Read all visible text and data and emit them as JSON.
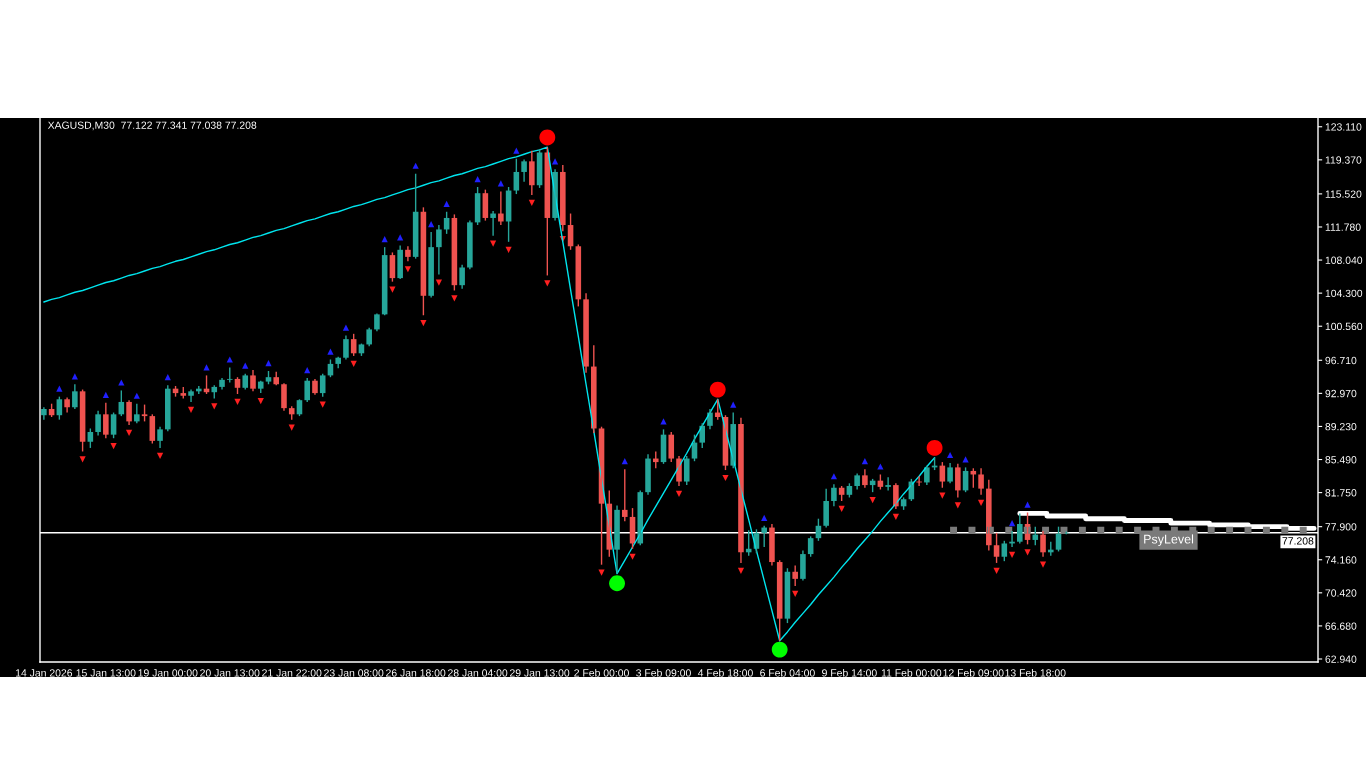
{
  "chart_data": {
    "type": "candlestick",
    "title": "XAGUSD,M30  77.122 77.341 77.038 77.208",
    "categories": [
      "14 Jan 2026",
      null,
      null,
      null,
      null,
      null,
      null,
      null,
      "15 Jan 13:00",
      null,
      null,
      null,
      null,
      null,
      null,
      null,
      "19 Jan 00:00",
      null,
      null,
      null,
      null,
      null,
      null,
      null,
      "20 Jan 13:00",
      null,
      null,
      null,
      null,
      null,
      null,
      null,
      "21 Jan 22:00",
      null,
      null,
      null,
      null,
      null,
      null,
      null,
      "23 Jan 08:00",
      null,
      null,
      null,
      null,
      null,
      null,
      null,
      "26 Jan 18:00",
      null,
      null,
      null,
      null,
      null,
      null,
      null,
      "28 Jan 04:00",
      null,
      null,
      null,
      null,
      null,
      null,
      null,
      "29 Jan 13:00",
      null,
      null,
      null,
      null,
      null,
      null,
      null,
      "2 Feb 00:00",
      null,
      null,
      null,
      null,
      null,
      null,
      null,
      "3 Feb 09:00",
      null,
      null,
      null,
      null,
      null,
      null,
      null,
      "4 Feb 18:00",
      null,
      null,
      null,
      null,
      null,
      null,
      null,
      "6 Feb 04:00",
      null,
      null,
      null,
      null,
      null,
      null,
      null,
      "9 Feb 14:00",
      null,
      null,
      null,
      null,
      null,
      null,
      null,
      "11 Feb 00:00",
      null,
      null,
      null,
      null,
      null,
      null,
      null,
      "12 Feb 09:00",
      null,
      null,
      null,
      null,
      null,
      null,
      null,
      "13 Feb 18:00",
      null,
      null,
      null,
      null,
      null,
      null,
      null,
      null,
      null,
      null,
      null,
      null,
      null,
      null,
      null,
      null,
      null,
      null,
      null,
      null,
      null,
      null,
      null,
      null,
      null,
      null,
      null,
      null,
      null,
      null,
      null,
      null,
      null,
      null,
      null,
      null
    ],
    "ohlc": [
      [
        90.5,
        91.4,
        90.0,
        91.2
      ],
      [
        91.2,
        91.8,
        90.3,
        90.5
      ],
      [
        90.5,
        92.6,
        90.0,
        92.3
      ],
      [
        92.3,
        92.5,
        90.8,
        91.4
      ],
      [
        91.4,
        94.0,
        91.2,
        93.2
      ],
      [
        93.2,
        93.4,
        86.4,
        87.5
      ],
      [
        87.5,
        89.0,
        86.8,
        88.6
      ],
      [
        88.6,
        91.0,
        88.2,
        90.6
      ],
      [
        90.6,
        91.9,
        87.9,
        88.3
      ],
      [
        88.3,
        90.8,
        87.9,
        90.6
      ],
      [
        90.6,
        93.3,
        90.4,
        92.0
      ],
      [
        92.0,
        92.2,
        89.4,
        89.8
      ],
      [
        89.8,
        91.8,
        89.6,
        90.6
      ],
      [
        90.6,
        91.7,
        89.8,
        90.4
      ],
      [
        90.4,
        90.6,
        87.3,
        87.6
      ],
      [
        87.6,
        89.2,
        86.8,
        88.9
      ],
      [
        88.9,
        93.9,
        88.7,
        93.5
      ],
      [
        93.5,
        93.8,
        92.6,
        93.0
      ],
      [
        93.0,
        93.7,
        92.4,
        92.7
      ],
      [
        92.7,
        93.4,
        92.0,
        93.2
      ],
      [
        93.2,
        93.8,
        92.9,
        93.5
      ],
      [
        93.5,
        95.0,
        92.9,
        93.1
      ],
      [
        93.1,
        93.9,
        92.4,
        93.7
      ],
      [
        93.7,
        94.7,
        93.4,
        94.5
      ],
      [
        94.5,
        95.9,
        94.2,
        94.6
      ],
      [
        94.6,
        94.8,
        92.9,
        93.6
      ],
      [
        93.6,
        95.2,
        93.4,
        95.0
      ],
      [
        95.0,
        95.6,
        93.2,
        93.5
      ],
      [
        93.5,
        94.4,
        93.0,
        94.3
      ],
      [
        94.3,
        95.5,
        94.0,
        94.8
      ],
      [
        94.8,
        95.4,
        93.9,
        94.0
      ],
      [
        94.0,
        94.1,
        91.0,
        91.3
      ],
      [
        91.3,
        91.5,
        90.0,
        90.6
      ],
      [
        90.6,
        92.3,
        90.4,
        92.2
      ],
      [
        92.2,
        94.7,
        92.0,
        94.4
      ],
      [
        94.4,
        94.6,
        92.8,
        93.0
      ],
      [
        93.0,
        95.2,
        92.6,
        95.0
      ],
      [
        95.0,
        96.8,
        94.8,
        96.3
      ],
      [
        96.3,
        97.1,
        95.8,
        97.0
      ],
      [
        97.0,
        99.5,
        96.8,
        99.1
      ],
      [
        99.1,
        99.7,
        97.2,
        97.5
      ],
      [
        97.5,
        98.6,
        97.2,
        98.5
      ],
      [
        98.5,
        100.4,
        98.3,
        100.2
      ],
      [
        100.2,
        102.0,
        100.0,
        101.9
      ],
      [
        101.9,
        109.5,
        101.8,
        108.6
      ],
      [
        108.6,
        108.9,
        105.6,
        106.0
      ],
      [
        106.0,
        109.7,
        105.9,
        109.2
      ],
      [
        109.2,
        109.6,
        107.9,
        108.4
      ],
      [
        108.4,
        117.8,
        108.2,
        113.5
      ],
      [
        113.5,
        114.0,
        101.8,
        104.0
      ],
      [
        104.0,
        111.2,
        103.8,
        109.5
      ],
      [
        109.5,
        112.0,
        106.4,
        111.5
      ],
      [
        111.5,
        113.5,
        111.0,
        112.8
      ],
      [
        112.8,
        113.2,
        104.6,
        105.2
      ],
      [
        105.2,
        107.5,
        104.8,
        107.2
      ],
      [
        107.2,
        112.5,
        107.0,
        112.3
      ],
      [
        112.3,
        116.3,
        112.0,
        115.6
      ],
      [
        115.6,
        116.0,
        112.5,
        112.8
      ],
      [
        112.8,
        113.6,
        110.8,
        113.3
      ],
      [
        113.3,
        115.8,
        112.0,
        112.4
      ],
      [
        112.4,
        116.3,
        110.1,
        115.9
      ],
      [
        115.9,
        119.5,
        115.5,
        118.0
      ],
      [
        118.0,
        119.4,
        116.9,
        119.2
      ],
      [
        119.2,
        120.4,
        115.4,
        116.5
      ],
      [
        116.5,
        120.6,
        116.2,
        120.2
      ],
      [
        120.2,
        120.8,
        106.3,
        112.8
      ],
      [
        112.8,
        118.3,
        112.5,
        118.0
      ],
      [
        118.0,
        118.8,
        111.3,
        112.0
      ],
      [
        112.0,
        113.3,
        109.2,
        109.6
      ],
      [
        109.6,
        109.8,
        102.8,
        103.6
      ],
      [
        103.6,
        104.3,
        95.3,
        96.0
      ],
      [
        96.0,
        98.4,
        88.5,
        89.0
      ],
      [
        89.0,
        89.2,
        73.6,
        80.5
      ],
      [
        80.5,
        82.0,
        74.5,
        75.3
      ],
      [
        75.3,
        80.3,
        72.6,
        79.8
      ],
      [
        79.8,
        84.4,
        78.5,
        79.0
      ],
      [
        79.0,
        80.0,
        75.4,
        76.0
      ],
      [
        76.0,
        82.0,
        75.8,
        81.8
      ],
      [
        81.8,
        86.1,
        81.5,
        85.6
      ],
      [
        85.6,
        86.4,
        84.5,
        85.2
      ],
      [
        85.2,
        88.9,
        85.0,
        88.3
      ],
      [
        88.3,
        88.6,
        85.2,
        85.6
      ],
      [
        85.6,
        85.9,
        82.5,
        83.0
      ],
      [
        83.0,
        85.9,
        82.6,
        85.6
      ],
      [
        85.6,
        88.3,
        85.3,
        87.4
      ],
      [
        87.4,
        89.6,
        86.8,
        89.3
      ],
      [
        89.3,
        91.2,
        88.9,
        90.8
      ],
      [
        90.8,
        92.3,
        90.0,
        90.3
      ],
      [
        90.3,
        90.5,
        84.3,
        84.8
      ],
      [
        84.8,
        90.8,
        84.5,
        89.5
      ],
      [
        89.5,
        90.2,
        73.8,
        75.0
      ],
      [
        75.0,
        77.5,
        74.6,
        75.4
      ],
      [
        75.4,
        77.6,
        74.9,
        77.2
      ],
      [
        77.2,
        78.0,
        75.6,
        77.8
      ],
      [
        77.8,
        78.2,
        73.5,
        73.9
      ],
      [
        73.9,
        74.1,
        65.0,
        67.5
      ],
      [
        67.5,
        73.2,
        67.0,
        72.8
      ],
      [
        72.8,
        73.5,
        71.2,
        72.0
      ],
      [
        72.0,
        75.2,
        71.8,
        74.8
      ],
      [
        74.8,
        76.8,
        74.5,
        76.6
      ],
      [
        76.6,
        78.8,
        76.3,
        78.0
      ],
      [
        78.0,
        82.2,
        77.8,
        80.8
      ],
      [
        80.8,
        82.7,
        80.2,
        82.3
      ],
      [
        82.3,
        82.5,
        80.8,
        81.5
      ],
      [
        81.5,
        82.8,
        81.2,
        82.5
      ],
      [
        82.5,
        83.9,
        82.1,
        83.7
      ],
      [
        83.7,
        84.4,
        82.3,
        82.6
      ],
      [
        82.6,
        83.3,
        81.8,
        83.1
      ],
      [
        83.1,
        83.8,
        82.1,
        82.4
      ],
      [
        82.4,
        83.5,
        82.0,
        82.6
      ],
      [
        82.6,
        82.8,
        79.9,
        80.2
      ],
      [
        80.2,
        81.2,
        79.8,
        81.0
      ],
      [
        81.0,
        83.3,
        80.8,
        83.0
      ],
      [
        83.0,
        83.6,
        82.5,
        82.9
      ],
      [
        82.9,
        84.8,
        82.6,
        84.6
      ],
      [
        84.6,
        85.7,
        84.3,
        84.8
      ],
      [
        84.8,
        85.2,
        82.3,
        83.0
      ],
      [
        83.0,
        85.1,
        82.8,
        84.6
      ],
      [
        84.6,
        85.0,
        81.2,
        82.0
      ],
      [
        82.0,
        84.6,
        81.8,
        84.2
      ],
      [
        84.2,
        84.5,
        82.3,
        83.8
      ],
      [
        83.8,
        84.5,
        81.5,
        82.2
      ],
      [
        82.2,
        83.2,
        75.2,
        75.8
      ],
      [
        75.8,
        77.2,
        73.8,
        74.5
      ],
      [
        74.5,
        76.3,
        74.0,
        76.0
      ],
      [
        76.0,
        77.4,
        75.6,
        76.2
      ],
      [
        76.2,
        79.4,
        76.0,
        78.2
      ],
      [
        78.2,
        79.5,
        75.9,
        76.4
      ],
      [
        76.4,
        77.9,
        75.8,
        77.0
      ],
      [
        77.0,
        77.4,
        74.5,
        75.0
      ],
      [
        75.0,
        76.2,
        74.6,
        75.3
      ],
      [
        75.3,
        77.9,
        75.1,
        77.1
      ],
      [
        77.122,
        77.341,
        77.038,
        77.208
      ],
      null,
      null,
      null,
      null,
      null,
      null,
      null,
      null,
      null,
      null,
      null,
      null,
      null,
      null,
      null,
      null,
      null,
      null,
      null,
      null,
      null,
      null,
      null,
      null,
      null,
      null,
      null,
      null,
      null,
      null,
      null,
      null
    ],
    "colors": [
      "#26a69a",
      "#ef5350",
      "#26a69a",
      "#ef5350",
      "#26a69a",
      "#ef5350",
      "#26a69a",
      "#26a69a",
      "#ef5350",
      "#26a69a",
      "#26a69a",
      "#ef5350",
      "#26a69a",
      "#ef5350",
      "#ef5350",
      "#26a69a",
      "#26a69a",
      "#ef5350",
      "#ef5350",
      "#26a69a",
      "#26a69a",
      "#ef5350",
      "#26a69a",
      "#26a69a",
      "#26a69a",
      "#ef5350",
      "#26a69a",
      "#ef5350",
      "#26a69a",
      "#26a69a",
      "#ef5350",
      "#ef5350",
      "#ef5350",
      "#26a69a",
      "#26a69a",
      "#ef5350",
      "#26a69a",
      "#26a69a",
      "#26a69a",
      "#26a69a",
      "#ef5350",
      "#26a69a",
      "#26a69a",
      "#26a69a",
      "#26a69a",
      "#ef5350",
      "#26a69a",
      "#ef5350",
      "#26a69a",
      "#ef5350",
      "#26a69a",
      "#26a69a",
      "#26a69a",
      "#ef5350",
      "#26a69a",
      "#26a69a",
      "#26a69a",
      "#ef5350",
      "#26a69a",
      "#ef5350",
      "#26a69a",
      "#26a69a",
      "#26a69a",
      "#ef5350",
      "#26a69a",
      "#ef5350",
      "#26a69a",
      "#ef5350",
      "#ef5350",
      "#ef5350",
      "#ef5350",
      "#ef5350",
      "#ef5350",
      "#ef5350",
      "#26a69a",
      "#ef5350",
      "#ef5350",
      "#26a69a",
      "#26a69a",
      "#ef5350",
      "#26a69a",
      "#ef5350",
      "#ef5350",
      "#26a69a",
      "#26a69a",
      "#26a69a",
      "#26a69a",
      "#ef5350",
      "#ef5350",
      "#26a69a",
      "#ef5350",
      "#26a69a",
      "#26a69a",
      "#26a69a",
      "#ef5350",
      "#ef5350",
      "#26a69a",
      "#ef5350",
      "#26a69a",
      "#26a69a",
      "#26a69a",
      "#26a69a",
      "#26a69a",
      "#ef5350",
      "#26a69a",
      "#26a69a",
      "#ef5350",
      "#26a69a",
      "#ef5350",
      "#26a69a",
      "#ef5350",
      "#26a69a",
      "#26a69a",
      "#ef5350",
      "#26a69a",
      "#26a69a",
      "#ef5350",
      "#26a69a",
      "#ef5350",
      "#26a69a",
      "#ef5350",
      "#ef5350",
      "#ef5350",
      "#ef5350",
      "#26a69a",
      "#26a69a",
      "#26a69a",
      "#ef5350",
      "#26a69a",
      "#ef5350",
      "#26a69a",
      "#26a69a",
      "#26a69a",
      null,
      null,
      null,
      null,
      null,
      null,
      null,
      null,
      null,
      null,
      null,
      null,
      null,
      null,
      null,
      null,
      null,
      null,
      null,
      null,
      null,
      null,
      null,
      null,
      null,
      null,
      null,
      null,
      null,
      null,
      null,
      null
    ],
    "series": [
      {
        "type": "line",
        "color": "#00e5ee",
        "line_style": "solid",
        "values": [
          103.3,
          103.6,
          103.8,
          104.1,
          104.4,
          104.6,
          104.9,
          105.2,
          105.5,
          105.7,
          106.0,
          106.3,
          106.5,
          106.8,
          107.1,
          107.3,
          107.6,
          107.9,
          108.1,
          108.4,
          108.7,
          109.0,
          109.2,
          109.5,
          109.8,
          110.0,
          110.3,
          110.6,
          110.8,
          111.1,
          111.4,
          111.6,
          111.9,
          112.2,
          112.5,
          112.7,
          113.0,
          113.3,
          113.5,
          113.8,
          114.1,
          114.3,
          114.6,
          114.9,
          115.1,
          115.4,
          115.7,
          116.0,
          116.2,
          116.5,
          116.8,
          117.0,
          117.3,
          117.6,
          117.8,
          118.1,
          118.4,
          118.6,
          118.9,
          119.2,
          119.5,
          119.7,
          120.0,
          120.3,
          120.5,
          120.8,
          115.4,
          110.1,
          104.7,
          99.4,
          94.0,
          88.7,
          83.3,
          78.0,
          72.6,
          74.1,
          75.6,
          77.1,
          78.7,
          80.2,
          81.7,
          83.2,
          84.7,
          86.2,
          87.8,
          89.3,
          90.8,
          92.3,
          88.9,
          85.5,
          82.1,
          78.7,
          75.2,
          71.8,
          68.4,
          65.0,
          66.0,
          67.1,
          68.1,
          69.1,
          70.2,
          71.2,
          72.2,
          73.3,
          74.3,
          75.4,
          76.4,
          77.4,
          78.5,
          79.5,
          80.5,
          81.6,
          82.6,
          83.6,
          84.7,
          85.7,
          null,
          null,
          null,
          null,
          null,
          null,
          null,
          null,
          null,
          null,
          null,
          null,
          null,
          null,
          null,
          null,
          null,
          null,
          null,
          null,
          null,
          null,
          null,
          null,
          null,
          null,
          null,
          null,
          null,
          null,
          null,
          null,
          null,
          null,
          null,
          null,
          null,
          null,
          null,
          null,
          null,
          null,
          null,
          null,
          null,
          null,
          null,
          null,
          null
        ]
      },
      {
        "type": "step",
        "color": "#ffffff",
        "values": [
          null,
          null,
          null,
          null,
          null,
          null,
          null,
          null,
          null,
          null,
          null,
          null,
          null,
          null,
          null,
          null,
          null,
          null,
          null,
          null,
          null,
          null,
          null,
          null,
          null,
          null,
          null,
          null,
          null,
          null,
          null,
          null,
          null,
          null,
          null,
          null,
          null,
          null,
          null,
          null,
          null,
          null,
          null,
          null,
          null,
          null,
          null,
          null,
          null,
          null,
          null,
          null,
          null,
          null,
          null,
          null,
          null,
          null,
          null,
          null,
          null,
          null,
          null,
          null,
          null,
          null,
          null,
          null,
          null,
          null,
          null,
          null,
          null,
          null,
          null,
          null,
          null,
          null,
          null,
          null,
          null,
          null,
          null,
          null,
          null,
          null,
          null,
          null,
          null,
          null,
          null,
          null,
          null,
          null,
          null,
          null,
          null,
          null,
          null,
          null,
          null,
          null,
          null,
          null,
          null,
          null,
          null,
          null,
          null,
          null,
          null,
          null,
          null,
          null,
          null,
          null,
          null,
          null,
          null,
          null,
          null,
          null,
          null,
          null,
          null,
          null,
          79.4,
          79.4,
          79.4,
          79.4,
          79.1,
          79.1,
          79.1,
          79.1,
          79.1,
          78.8,
          78.8,
          78.8,
          78.8,
          78.8,
          78.6,
          78.6,
          78.6,
          78.6,
          78.6,
          78.6,
          78.3,
          78.3,
          78.3,
          78.3,
          78.3,
          78.1,
          78.1,
          78.1,
          78.1,
          78.1,
          77.9,
          77.9,
          77.9,
          77.9,
          77.9,
          77.7,
          77.7,
          77.7,
          77.7
        ]
      },
      {
        "type": "line",
        "name": "PsyLevel",
        "color": "#7a7a7a",
        "line_style": "dotted",
        "values": [
          null,
          null,
          null,
          null,
          null,
          null,
          null,
          null,
          null,
          null,
          null,
          null,
          null,
          null,
          null,
          null,
          null,
          null,
          null,
          null,
          null,
          null,
          null,
          null,
          null,
          null,
          null,
          null,
          null,
          null,
          null,
          null,
          null,
          null,
          null,
          null,
          null,
          null,
          null,
          null,
          null,
          null,
          null,
          null,
          null,
          null,
          null,
          null,
          null,
          null,
          null,
          null,
          null,
          null,
          null,
          null,
          null,
          null,
          null,
          null,
          null,
          null,
          null,
          null,
          null,
          null,
          null,
          null,
          null,
          null,
          null,
          null,
          null,
          null,
          null,
          null,
          null,
          null,
          null,
          null,
          null,
          null,
          null,
          null,
          null,
          null,
          null,
          null,
          null,
          null,
          null,
          null,
          null,
          null,
          null,
          null,
          null,
          null,
          null,
          null,
          null,
          null,
          null,
          null,
          null,
          null,
          null,
          null,
          null,
          null,
          null,
          null,
          null,
          null,
          null,
          null,
          null,
          77.5,
          77.5,
          77.5,
          77.5,
          77.5,
          77.5,
          77.5,
          77.5,
          77.5,
          77.5,
          77.5,
          77.5,
          77.5,
          77.5,
          77.5,
          77.5,
          77.5,
          77.5,
          77.5,
          77.5,
          77.5,
          77.5,
          77.5,
          77.5,
          77.5,
          77.5,
          77.5,
          77.5,
          77.5,
          77.5,
          77.5,
          77.5,
          77.5,
          77.5,
          77.5,
          77.5,
          77.5,
          77.5,
          77.5,
          77.5,
          77.5,
          77.5,
          77.5,
          77.5,
          77.5,
          77.5,
          77.5,
          77.5
        ]
      },
      {
        "type": "scatter",
        "marker": "circle",
        "values": [
          null,
          null,
          null,
          null,
          null,
          null,
          null,
          null,
          null,
          null,
          null,
          null,
          null,
          null,
          null,
          null,
          null,
          null,
          null,
          null,
          null,
          null,
          null,
          null,
          null,
          null,
          null,
          null,
          null,
          null,
          null,
          null,
          null,
          null,
          null,
          null,
          null,
          null,
          null,
          null,
          null,
          null,
          null,
          null,
          null,
          null,
          null,
          null,
          null,
          null,
          null,
          null,
          null,
          null,
          null,
          null,
          null,
          null,
          null,
          null,
          null,
          null,
          null,
          null,
          null,
          121.9,
          null,
          null,
          null,
          null,
          null,
          null,
          null,
          null,
          71.5,
          null,
          null,
          null,
          null,
          null,
          null,
          null,
          null,
          null,
          null,
          null,
          null,
          93.4,
          null,
          null,
          null,
          null,
          null,
          null,
          null,
          64.0,
          null,
          null,
          null,
          null,
          null,
          null,
          null,
          null,
          null,
          null,
          null,
          null,
          null,
          null,
          null,
          null,
          null,
          null,
          null,
          86.8,
          null,
          null,
          null,
          null,
          null,
          null,
          null,
          null,
          null,
          null,
          null,
          null,
          null,
          null,
          null,
          null,
          null,
          null,
          null,
          null,
          null,
          null,
          null,
          null,
          null,
          null,
          null,
          null,
          null,
          null,
          null,
          null,
          null,
          null,
          null,
          null,
          null,
          null,
          null,
          null,
          null,
          null,
          null,
          null,
          null,
          null,
          null,
          null,
          null
        ],
        "colors": [
          null,
          null,
          null,
          null,
          null,
          null,
          null,
          null,
          null,
          null,
          null,
          null,
          null,
          null,
          null,
          null,
          null,
          null,
          null,
          null,
          null,
          null,
          null,
          null,
          null,
          null,
          null,
          null,
          null,
          null,
          null,
          null,
          null,
          null,
          null,
          null,
          null,
          null,
          null,
          null,
          null,
          null,
          null,
          null,
          null,
          null,
          null,
          null,
          null,
          null,
          null,
          null,
          null,
          null,
          null,
          null,
          null,
          null,
          null,
          null,
          null,
          null,
          null,
          null,
          null,
          "#ff0000",
          null,
          null,
          null,
          null,
          null,
          null,
          null,
          null,
          "#00ff00",
          null,
          null,
          null,
          null,
          null,
          null,
          null,
          null,
          null,
          null,
          null,
          null,
          "#ff0000",
          null,
          null,
          null,
          null,
          null,
          null,
          null,
          "#00ff00",
          null,
          null,
          null,
          null,
          null,
          null,
          null,
          null,
          null,
          null,
          null,
          null,
          null,
          null,
          null,
          null,
          null,
          null,
          null,
          "#ff0000",
          null,
          null,
          null,
          null,
          null,
          null,
          null,
          null,
          null,
          null,
          null,
          null,
          null,
          null,
          null,
          null,
          null,
          null,
          null,
          null,
          null,
          null,
          null,
          null,
          null,
          null,
          null,
          null,
          null,
          null,
          null,
          null,
          null,
          null,
          null,
          null,
          null,
          null,
          null,
          null,
          null,
          null,
          null,
          null,
          null,
          null,
          null,
          null,
          null
        ]
      },
      {
        "type": "scatter",
        "color": "#2020ff",
        "marker": "triangle",
        "values": [
          null,
          null,
          93.5,
          null,
          94.9,
          null,
          null,
          null,
          92.8,
          null,
          94.2,
          null,
          92.7,
          null,
          null,
          null,
          94.8,
          null,
          null,
          null,
          null,
          95.9,
          null,
          null,
          96.8,
          null,
          96.1,
          null,
          null,
          96.4,
          null,
          null,
          null,
          null,
          95.6,
          null,
          null,
          97.7,
          null,
          100.4,
          null,
          null,
          null,
          null,
          110.4,
          null,
          110.6,
          null,
          118.7,
          null,
          112.1,
          null,
          114.4,
          null,
          null,
          null,
          117.2,
          null,
          null,
          116.7,
          null,
          120.4,
          null,
          null,
          null,
          null,
          119.2,
          null,
          null,
          null,
          null,
          null,
          null,
          null,
          null,
          85.3,
          null,
          null,
          null,
          null,
          89.8,
          null,
          null,
          null,
          null,
          null,
          null,
          null,
          null,
          91.7,
          null,
          null,
          null,
          78.9,
          null,
          null,
          null,
          null,
          null,
          null,
          null,
          null,
          83.6,
          null,
          null,
          null,
          85.3,
          null,
          84.7,
          null,
          null,
          null,
          null,
          null,
          null,
          null,
          null,
          86.0,
          null,
          85.5,
          null,
          null,
          null,
          null,
          null,
          78.3,
          null,
          80.4,
          null,
          null,
          null,
          null,
          null,
          null,
          null,
          null,
          null,
          null,
          null,
          null,
          null,
          null,
          null,
          null,
          null,
          null,
          null,
          null,
          null,
          null,
          null,
          null,
          null,
          null,
          null,
          null,
          null,
          null,
          null,
          null,
          null,
          null,
          null,
          null,
          null
        ]
      },
      {
        "type": "scatter",
        "color": "#ff2020",
        "marker": "triangle",
        "values": [
          null,
          null,
          null,
          null,
          null,
          85.5,
          null,
          null,
          null,
          87.0,
          null,
          88.5,
          null,
          null,
          null,
          85.9,
          null,
          null,
          null,
          91.1,
          null,
          null,
          91.5,
          null,
          null,
          92.0,
          null,
          null,
          92.1,
          null,
          null,
          null,
          89.1,
          null,
          null,
          null,
          91.7,
          null,
          null,
          null,
          96.3,
          null,
          null,
          null,
          null,
          104.7,
          null,
          107.0,
          null,
          100.9,
          null,
          105.5,
          null,
          103.7,
          null,
          null,
          null,
          null,
          109.9,
          null,
          109.2,
          null,
          null,
          114.5,
          null,
          105.4,
          null,
          110.4,
          null,
          null,
          null,
          null,
          72.7,
          null,
          null,
          null,
          74.5,
          null,
          null,
          null,
          null,
          null,
          81.6,
          null,
          null,
          null,
          null,
          null,
          83.4,
          null,
          72.9,
          null,
          null,
          null,
          null,
          null,
          null,
          70.3,
          null,
          null,
          null,
          null,
          null,
          79.9,
          null,
          null,
          null,
          80.9,
          null,
          null,
          79.0,
          null,
          null,
          null,
          null,
          null,
          81.4,
          null,
          80.3,
          null,
          null,
          80.6,
          null,
          72.9,
          null,
          74.7,
          null,
          75.0,
          null,
          73.6,
          null,
          null,
          null,
          null,
          null,
          null,
          null,
          null,
          null,
          null,
          null,
          null,
          null,
          null,
          null,
          null,
          null,
          null,
          null,
          null,
          null,
          null,
          null,
          null,
          null,
          null,
          null,
          null,
          null,
          null,
          null,
          null,
          null,
          null,
          null
        ]
      }
    ],
    "ref_lines": [
      {
        "axis": "y",
        "value": 77.208,
        "label": "77.208",
        "color": "#ffffff"
      }
    ],
    "ylim": [
      62.6,
      124.1
    ],
    "yticks": [
      {
        "value": 62.94,
        "label": "62.940"
      },
      {
        "value": 66.68,
        "label": "66.680"
      },
      {
        "value": 70.42,
        "label": "70.420"
      },
      {
        "value": 74.16,
        "label": "74.160"
      },
      {
        "value": 77.9,
        "label": "77.900"
      },
      {
        "value": 81.75,
        "label": "81.750"
      },
      {
        "value": 85.49,
        "label": "85.490"
      },
      {
        "value": 89.23,
        "label": "89.230"
      },
      {
        "value": 92.97,
        "label": "92.970"
      },
      {
        "value": 96.71,
        "label": "96.710"
      },
      {
        "value": 100.56,
        "label": "100.560"
      },
      {
        "value": 104.3,
        "label": "104.300"
      },
      {
        "value": 108.04,
        "label": "108.040"
      },
      {
        "value": 111.78,
        "label": "111.780"
      },
      {
        "value": 115.52,
        "label": "115.520"
      },
      {
        "value": 119.37,
        "label": "119.370"
      },
      {
        "value": 123.11,
        "label": "123.110"
      }
    ]
  }
}
